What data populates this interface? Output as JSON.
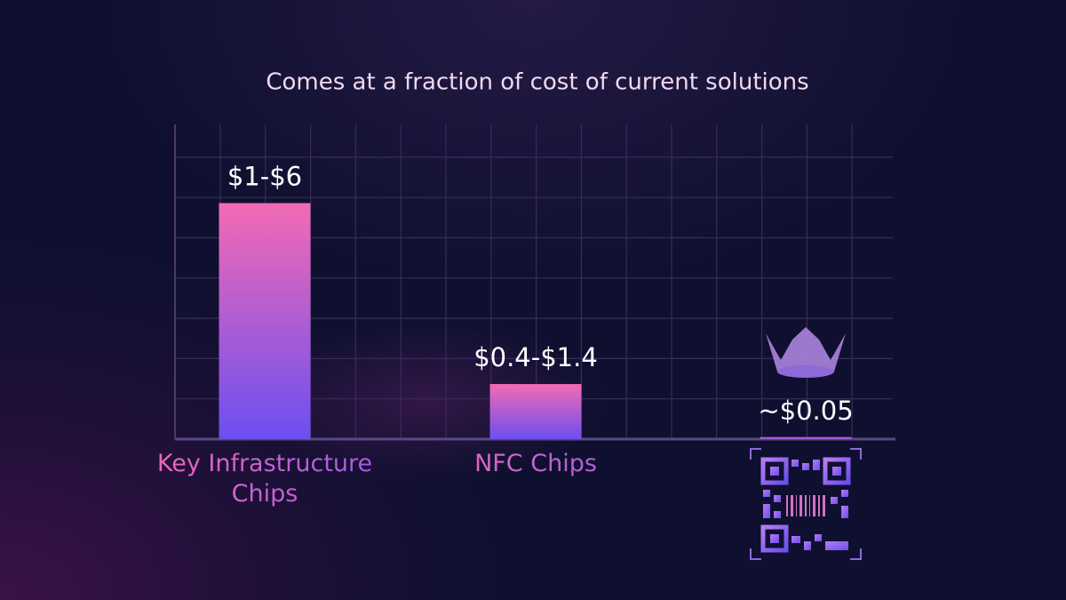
{
  "chart_data": {
    "type": "bar",
    "title": "Comes at a fraction of cost of current solutions",
    "categories": [
      "Key Infrastructure Chips",
      "NFC Chips",
      null
    ],
    "values": [
      6,
      1.4,
      0.05
    ],
    "value_labels": [
      "$1-$6",
      "$0.4-$1.4",
      "~$0.05"
    ],
    "ylim": [
      0,
      8
    ],
    "gradient": [
      "#f26bb3",
      "#6c4ff0"
    ],
    "grid": true
  }
}
